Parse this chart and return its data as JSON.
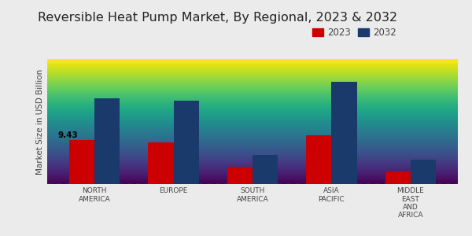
{
  "title": "Reversible Heat Pump Market, By Regional, 2023 & 2032",
  "ylabel": "Market Size in USD Billion",
  "categories": [
    "NORTH\nAMERICA",
    "EUROPE",
    "SOUTH\nAMERICA",
    "ASIA\nPACIFIC",
    "MIDDLE\nEAST\nAND\nAFRICA"
  ],
  "values_2023": [
    9.43,
    9.0,
    3.8,
    10.5,
    2.8
  ],
  "values_2032": [
    18.5,
    18.0,
    6.2,
    22.0,
    5.2
  ],
  "color_2023": "#cc0000",
  "color_2032": "#1a3a6b",
  "annotation_text": "9.43",
  "annotation_idx": 0,
  "background_top": "#ebebeb",
  "background_bottom": "#d8d8d8",
  "bar_width": 0.32,
  "ylim": [
    0,
    27
  ],
  "legend_labels": [
    "2023",
    "2032"
  ],
  "title_fontsize": 11.5,
  "axis_label_fontsize": 7.5,
  "tick_fontsize": 6.5,
  "legend_fontsize": 8.5,
  "annotation_fontsize": 7.5
}
